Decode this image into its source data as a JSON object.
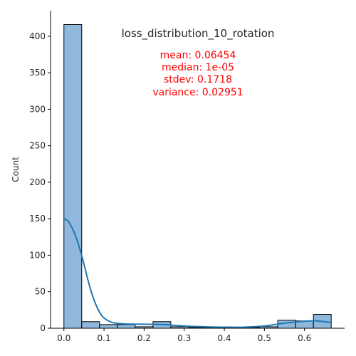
{
  "chart_data": {
    "type": "histogram",
    "title": "loss_distribution_10_rotation",
    "xlabel": "",
    "ylabel": "Count",
    "xlim": [
      -0.0333,
      0.7
    ],
    "ylim": [
      0,
      435
    ],
    "xticks": [
      0.0,
      0.1,
      0.2,
      0.3,
      0.4,
      0.5,
      0.6
    ],
    "xtick_labels": [
      "0.0",
      "0.1",
      "0.2",
      "0.3",
      "0.4",
      "0.5",
      "0.6"
    ],
    "yticks": [
      0,
      50,
      100,
      150,
      200,
      250,
      300,
      350,
      400
    ],
    "ytick_labels": [
      "0",
      "50",
      "100",
      "150",
      "200",
      "250",
      "300",
      "350",
      "400"
    ],
    "bin_width": 0.0444,
    "bins": [
      {
        "x0": 0.0,
        "count": 416
      },
      {
        "x0": 0.0444,
        "count": 9
      },
      {
        "x0": 0.0889,
        "count": 5
      },
      {
        "x0": 0.1333,
        "count": 5
      },
      {
        "x0": 0.1778,
        "count": 2
      },
      {
        "x0": 0.2222,
        "count": 9
      },
      {
        "x0": 0.2667,
        "count": 2
      },
      {
        "x0": 0.3111,
        "count": 1
      },
      {
        "x0": 0.3556,
        "count": 1
      },
      {
        "x0": 0.4,
        "count": 1
      },
      {
        "x0": 0.4444,
        "count": 1
      },
      {
        "x0": 0.4889,
        "count": 2
      },
      {
        "x0": 0.5333,
        "count": 11
      },
      {
        "x0": 0.5778,
        "count": 10
      },
      {
        "x0": 0.6222,
        "count": 19
      }
    ],
    "kde": {
      "x": [
        0.0,
        0.01,
        0.02,
        0.03,
        0.04,
        0.05,
        0.06,
        0.07,
        0.08,
        0.09,
        0.1,
        0.12,
        0.15,
        0.2,
        0.25,
        0.3,
        0.35,
        0.4,
        0.45,
        0.5,
        0.55,
        0.6,
        0.63,
        0.665
      ],
      "y": [
        150,
        147,
        138,
        125,
        108,
        88,
        66,
        47,
        32,
        21,
        14,
        8,
        6,
        5.5,
        5,
        3,
        2,
        1.5,
        1.5,
        3,
        7,
        9.5,
        10,
        8
      ]
    },
    "bar_color": "#8fb8dc",
    "bar_edge_color": "#000000",
    "kde_color": "#1f77b4",
    "stats": {
      "color": "#ff0000",
      "lines": [
        "mean: 0.06454",
        "median: 1e-05",
        "stdev: 0.1718",
        "variance: 0.02951"
      ]
    }
  }
}
